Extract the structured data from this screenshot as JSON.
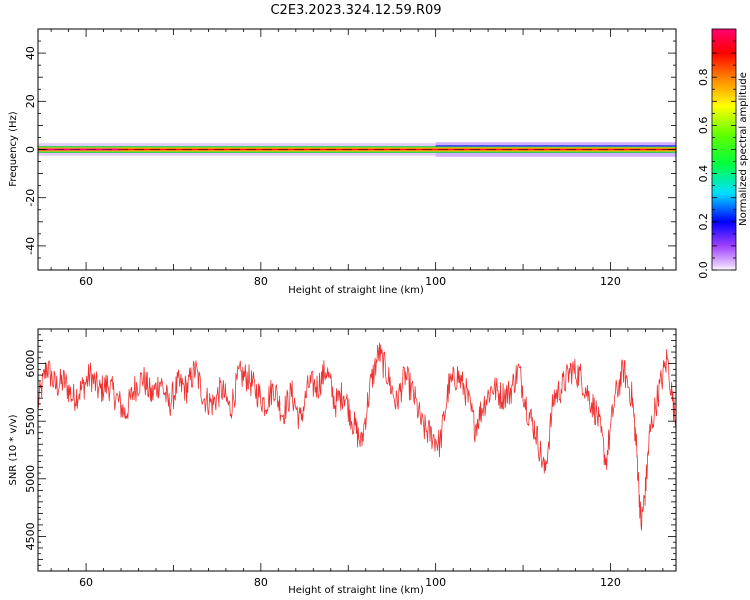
{
  "title": "C2E3.2023.324.12.59.R09",
  "chart_data": [
    {
      "type": "heatmap",
      "panel": "spectrogram",
      "xlabel": "Height of straight line (km)",
      "ylabel": "Frequency (Hz)",
      "xlim": [
        54.5,
        127.5
      ],
      "ylim": [
        -50,
        50
      ],
      "xticks": [
        60,
        80,
        100,
        120
      ],
      "yticks": [
        -40,
        -20,
        0,
        20,
        40
      ],
      "band": {
        "center_hz": 0,
        "core_halfwidth_hz": 0.6,
        "inner_halfwidth_hz": 1.4,
        "outer_halfwidth_hz": 2.6,
        "outer_halfwidth_hz_above_100km": 3.0
      },
      "colorbar": {
        "label": "Normalized spectral amplitude",
        "range": [
          0.0,
          1.0
        ],
        "ticks": [
          0.0,
          0.2,
          0.4,
          0.6,
          0.8
        ],
        "tick_labels": [
          "0.0",
          "0.2",
          "0.4",
          "0.6",
          "0.8"
        ]
      }
    },
    {
      "type": "line",
      "panel": "snr",
      "xlabel": "Height of straight line (km)",
      "ylabel": "SNR (10 * v/v)",
      "xlim": [
        54.5,
        127.5
      ],
      "ylim": [
        4200,
        6300
      ],
      "xticks": [
        60,
        80,
        100,
        120
      ],
      "yticks": [
        4500,
        5000,
        5500,
        6000
      ],
      "color": "#ef3030",
      "x": [
        54.5,
        55.5,
        56.5,
        57.5,
        58.5,
        59.5,
        60.5,
        61.5,
        62.5,
        63.5,
        64.5,
        65.5,
        66.5,
        67.5,
        68.5,
        69.5,
        70.5,
        71.5,
        72.5,
        73.5,
        74.5,
        75.5,
        76.5,
        77.5,
        78.5,
        79.5,
        80.5,
        81.5,
        82.5,
        83.5,
        84.5,
        85.5,
        86.5,
        87.5,
        88.5,
        89.5,
        90.5,
        91.5,
        92.5,
        93.5,
        94.5,
        95.5,
        96.5,
        97.5,
        98.5,
        99.5,
        100.5,
        101.5,
        102.5,
        103.5,
        104.5,
        105.5,
        106.5,
        107.5,
        108.5,
        109.5,
        110.5,
        111.5,
        112.5,
        113.5,
        114.5,
        115.5,
        116.5,
        117.5,
        118.5,
        119.5,
        120.5,
        121.5,
        122.5,
        123.0,
        123.5,
        124.0,
        124.5,
        125.5,
        126.5,
        127.5
      ],
      "y": [
        5650,
        5980,
        5800,
        5850,
        5700,
        5780,
        5900,
        5760,
        5820,
        5700,
        5560,
        5780,
        5880,
        5720,
        5850,
        5640,
        5820,
        5780,
        5950,
        5700,
        5650,
        5780,
        5600,
        5900,
        5880,
        5760,
        5650,
        5800,
        5560,
        5750,
        5500,
        5820,
        5800,
        5950,
        5650,
        5750,
        5500,
        5300,
        5800,
        6100,
        5900,
        5650,
        5900,
        5720,
        5450,
        5380,
        5300,
        5800,
        5900,
        5750,
        5450,
        5650,
        5800,
        5720,
        5750,
        5950,
        5600,
        5400,
        5050,
        5700,
        5800,
        5950,
        5900,
        5720,
        5550,
        5150,
        5700,
        5950,
        5700,
        5250,
        4600,
        4900,
        5400,
        5750,
        6050,
        5450
      ]
    }
  ]
}
